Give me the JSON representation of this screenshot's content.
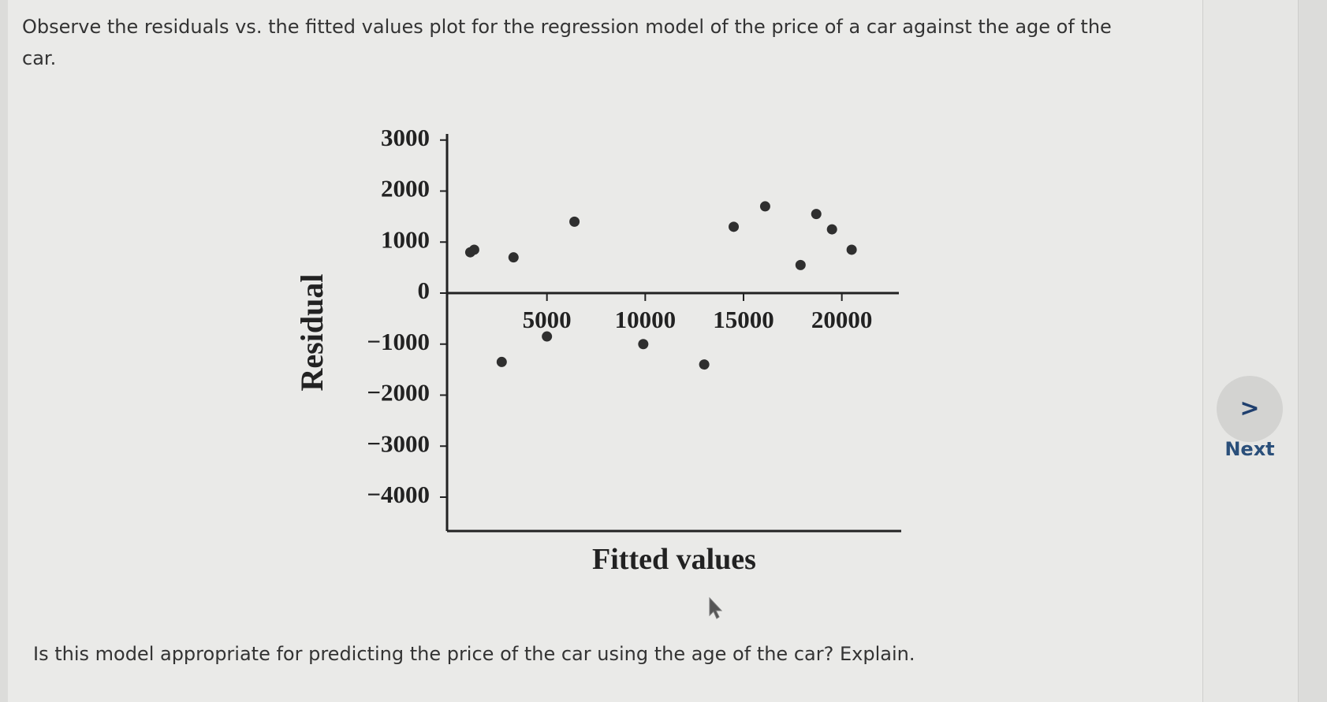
{
  "question": {
    "text": "Observe the residuals vs. the fitted values plot for the regression model of the price of a car against the age of the car.",
    "prompt": "Is this model appropriate for predicting the price of the car using the age of the car? Explain."
  },
  "navigation": {
    "next_label": "Next",
    "next_icon": "chevron-right-icon"
  },
  "chart_data": {
    "type": "scatter",
    "title": "",
    "xlabel": "Fitted values",
    "ylabel": "Residual",
    "xlim": [
      0,
      22500
    ],
    "ylim": [
      -4000,
      3000
    ],
    "x_ticks": [
      5000,
      10000,
      15000,
      20000
    ],
    "y_ticks": [
      3000,
      2000,
      1000,
      0,
      -1000,
      -2000,
      -3000,
      -4000
    ],
    "y_tick_labels": [
      "3000",
      "2000",
      "1000",
      "0",
      "−1000",
      "−2000",
      "−3000",
      "−4000"
    ],
    "grid": false,
    "points": [
      {
        "x": 1100,
        "y": 800
      },
      {
        "x": 1300,
        "y": 850
      },
      {
        "x": 2700,
        "y": -1350
      },
      {
        "x": 3300,
        "y": 700
      },
      {
        "x": 5000,
        "y": -850
      },
      {
        "x": 6400,
        "y": 1400
      },
      {
        "x": 9900,
        "y": -1000
      },
      {
        "x": 13000,
        "y": -1400
      },
      {
        "x": 14500,
        "y": 1300
      },
      {
        "x": 16100,
        "y": 1700
      },
      {
        "x": 17900,
        "y": 550
      },
      {
        "x": 18700,
        "y": 1550
      },
      {
        "x": 19500,
        "y": 1250
      },
      {
        "x": 20500,
        "y": 850
      }
    ]
  }
}
